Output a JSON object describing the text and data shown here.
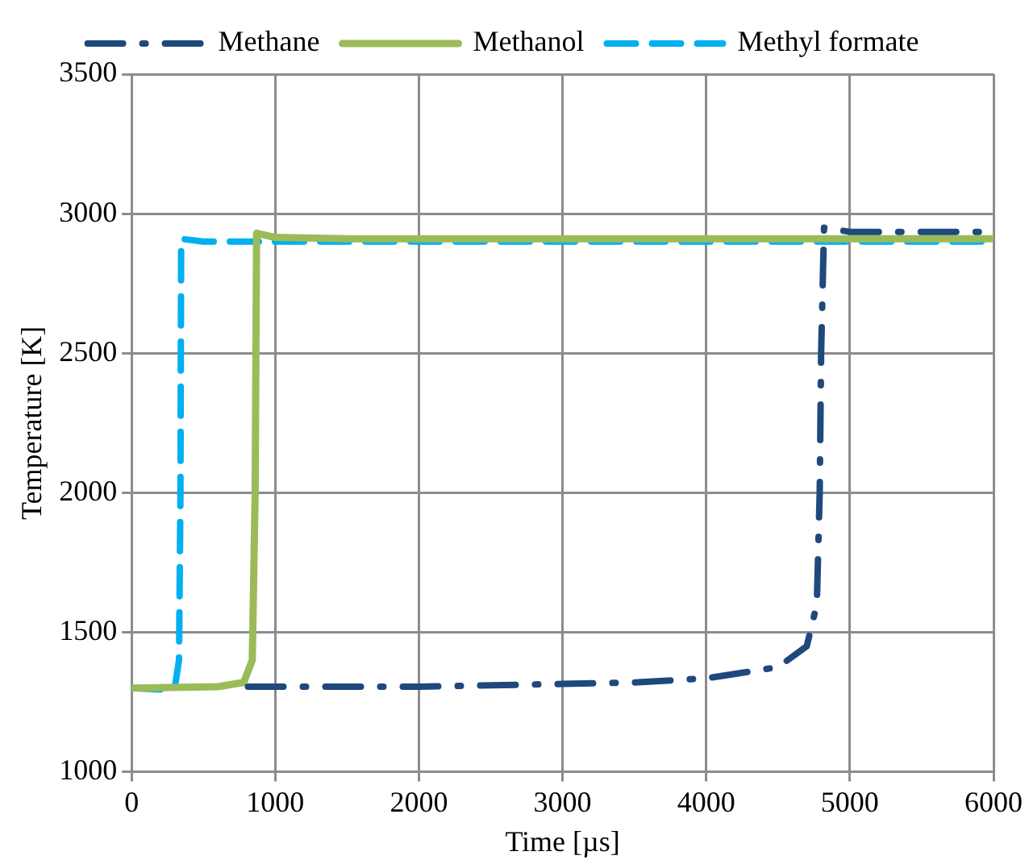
{
  "chart_data": {
    "type": "line",
    "xlabel": "Time [µs]",
    "ylabel": "Temperature [K]",
    "xlim": [
      0,
      6000
    ],
    "xticks": [
      0,
      1000,
      2000,
      3000,
      4000,
      5000,
      6000
    ],
    "ylim": [
      1000,
      3500
    ],
    "yticks": [
      1000,
      1500,
      2000,
      2500,
      3000,
      3500
    ],
    "grid": true,
    "legend": "top",
    "marker": "none",
    "series": [
      {
        "name": "Methane",
        "color": "#1f497d",
        "line_style": "dashdot",
        "x": [
          810,
          2000,
          3000,
          3500,
          4000,
          4500,
          4700,
          4770,
          4790,
          4800,
          4820,
          5000,
          6000
        ],
        "values": [
          1305,
          1305,
          1315,
          1320,
          1335,
          1375,
          1450,
          1600,
          2000,
          2500,
          2950,
          2935,
          2935
        ]
      },
      {
        "name": "Methanol",
        "color": "#9bbb59",
        "line_style": "solid",
        "x": [
          0,
          600,
          780,
          840,
          860,
          870,
          1000,
          1500,
          6000
        ],
        "values": [
          1300,
          1305,
          1320,
          1400,
          2000,
          2930,
          2915,
          2910,
          2910
        ]
      },
      {
        "name": "Methyl formate",
        "color": "#00b0f0",
        "line_style": "dashed",
        "x": [
          0,
          200,
          300,
          330,
          340,
          345,
          500,
          6000
        ],
        "values": [
          1300,
          1295,
          1300,
          1400,
          2000,
          2910,
          2900,
          2900
        ]
      }
    ]
  }
}
